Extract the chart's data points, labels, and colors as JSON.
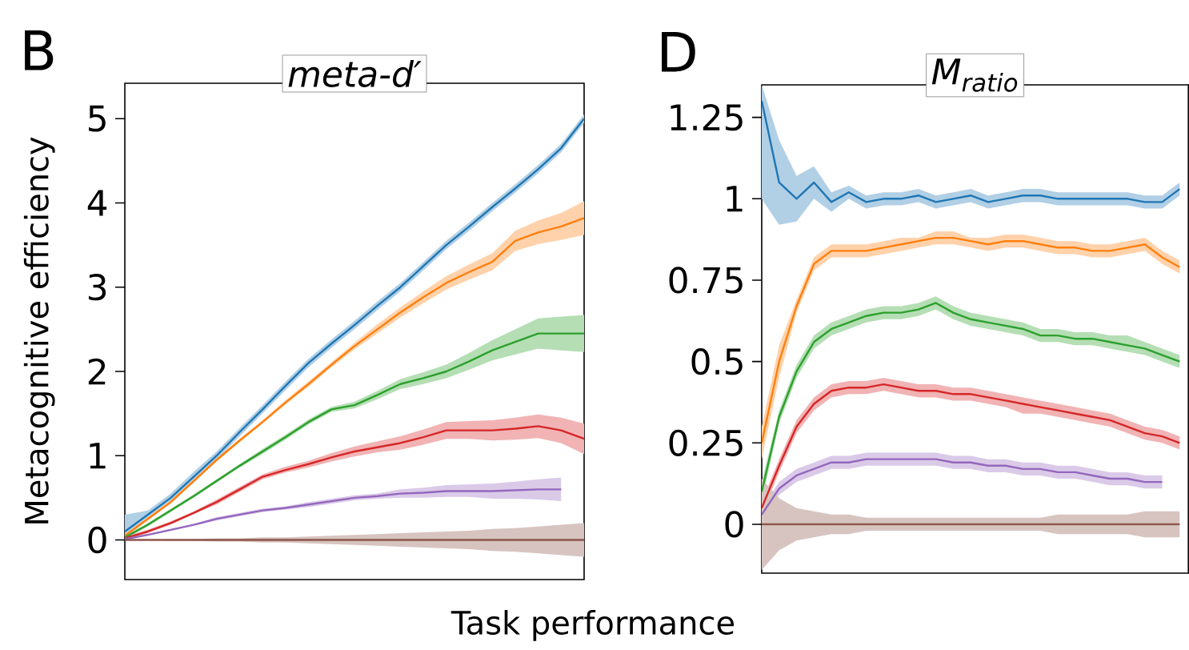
{
  "chart_data": [
    {
      "type": "line",
      "title": "meta-d′",
      "xlabel": "Task performance",
      "ylabel": "Metacognitive efficiency",
      "annotations": [
        "B"
      ],
      "tick_labels": "y",
      "categories": [
        null,
        null,
        null,
        null,
        null,
        null,
        null,
        null,
        null,
        null,
        null,
        null,
        null,
        null,
        null,
        null,
        null,
        null,
        null,
        null,
        null
      ],
      "ylim": [
        -0.47,
        5.42
      ],
      "yticks": [
        0,
        1,
        2,
        3,
        4,
        5
      ],
      "series": [
        {
          "color": "#1f77b4",
          "values": [
            0.1,
            0.3,
            0.5,
            0.75,
            1.0,
            1.28,
            1.55,
            1.83,
            2.1,
            2.33,
            2.55,
            2.78,
            3.0,
            3.25,
            3.5,
            3.72,
            3.95,
            4.17,
            4.4,
            4.65,
            5.0
          ],
          "lower": [
            0.05,
            0.25,
            0.45,
            0.7,
            0.95,
            1.23,
            1.5,
            1.78,
            2.05,
            2.28,
            2.5,
            2.73,
            2.95,
            3.2,
            3.45,
            3.67,
            3.9,
            4.12,
            4.35,
            4.6,
            4.95
          ],
          "upper": [
            0.3,
            0.35,
            0.55,
            0.81,
            1.05,
            1.33,
            1.6,
            1.88,
            2.15,
            2.38,
            2.6,
            2.83,
            3.05,
            3.3,
            3.55,
            3.77,
            4.0,
            4.22,
            4.45,
            4.7,
            5.05
          ]
        },
        {
          "color": "#ff7f0e",
          "values": [
            0.05,
            0.25,
            0.45,
            0.7,
            0.95,
            1.18,
            1.4,
            1.63,
            1.85,
            2.08,
            2.3,
            2.5,
            2.7,
            2.88,
            3.05,
            3.18,
            3.3,
            3.55,
            3.65,
            3.72,
            3.82
          ],
          "lower": [
            0.03,
            0.23,
            0.43,
            0.68,
            0.93,
            1.16,
            1.38,
            1.61,
            1.82,
            2.05,
            2.26,
            2.45,
            2.64,
            2.81,
            2.97,
            3.09,
            3.2,
            3.43,
            3.51,
            3.56,
            3.62
          ],
          "upper": [
            0.07,
            0.27,
            0.47,
            0.72,
            0.97,
            1.2,
            1.42,
            1.66,
            1.88,
            2.11,
            2.34,
            2.56,
            2.76,
            2.95,
            3.13,
            3.27,
            3.4,
            3.67,
            3.79,
            3.88,
            4.02
          ]
        },
        {
          "color": "#2ca02c",
          "values": [
            0.03,
            0.18,
            0.35,
            0.52,
            0.7,
            0.88,
            1.05,
            1.22,
            1.4,
            1.55,
            1.6,
            1.72,
            1.85,
            1.92,
            2.0,
            2.12,
            2.25,
            2.35,
            2.45,
            2.45,
            2.45
          ],
          "lower": [
            0.01,
            0.16,
            0.33,
            0.5,
            0.68,
            0.86,
            1.02,
            1.19,
            1.37,
            1.52,
            1.56,
            1.67,
            1.79,
            1.85,
            1.92,
            2.02,
            2.13,
            2.2,
            2.27,
            2.25,
            2.23
          ],
          "upper": [
            0.05,
            0.2,
            0.37,
            0.54,
            0.72,
            0.9,
            1.08,
            1.25,
            1.43,
            1.58,
            1.64,
            1.77,
            1.91,
            1.99,
            2.08,
            2.22,
            2.37,
            2.5,
            2.63,
            2.65,
            2.67
          ]
        },
        {
          "color": "#d62728",
          "values": [
            0.02,
            0.1,
            0.2,
            0.32,
            0.45,
            0.6,
            0.75,
            0.83,
            0.9,
            0.98,
            1.05,
            1.1,
            1.15,
            1.22,
            1.3,
            1.3,
            1.3,
            1.32,
            1.35,
            1.3,
            1.2
          ],
          "lower": [
            0.0,
            0.08,
            0.18,
            0.31,
            0.42,
            0.57,
            0.72,
            0.8,
            0.86,
            0.93,
            0.99,
            1.04,
            1.07,
            1.13,
            1.2,
            1.2,
            1.18,
            1.19,
            1.21,
            1.15,
            1.02
          ],
          "upper": [
            0.04,
            0.12,
            0.22,
            0.34,
            0.48,
            0.63,
            0.78,
            0.87,
            0.94,
            1.03,
            1.11,
            1.17,
            1.23,
            1.31,
            1.4,
            1.41,
            1.42,
            1.45,
            1.49,
            1.45,
            1.38
          ]
        },
        {
          "color": "#9467bd",
          "values": [
            0.01,
            0.06,
            0.12,
            0.18,
            0.25,
            0.3,
            0.35,
            0.38,
            0.42,
            0.46,
            0.5,
            0.52,
            0.55,
            0.56,
            0.58,
            0.58,
            0.58,
            0.59,
            0.6,
            0.6,
            null
          ],
          "lower": [
            0.0,
            0.05,
            0.11,
            0.17,
            0.23,
            0.28,
            0.33,
            0.36,
            0.39,
            0.43,
            0.47,
            0.49,
            0.5,
            0.5,
            0.51,
            0.51,
            0.49,
            0.49,
            0.48,
            0.46,
            null
          ],
          "upper": [
            0.02,
            0.07,
            0.13,
            0.19,
            0.27,
            0.32,
            0.37,
            0.4,
            0.45,
            0.49,
            0.53,
            0.55,
            0.6,
            0.62,
            0.65,
            0.66,
            0.67,
            0.69,
            0.72,
            0.74,
            null
          ]
        },
        {
          "color": "#8c564b",
          "values": [
            0,
            0,
            0,
            0,
            0,
            0,
            0,
            0,
            0,
            0,
            0,
            0,
            0,
            0,
            0,
            0,
            0,
            0,
            0,
            0,
            0
          ],
          "lower": [
            0,
            0,
            -0.01,
            -0.01,
            -0.02,
            -0.02,
            -0.03,
            -0.03,
            -0.04,
            -0.05,
            -0.06,
            -0.07,
            -0.08,
            -0.09,
            -0.1,
            -0.11,
            -0.13,
            -0.14,
            -0.16,
            -0.18,
            -0.2
          ],
          "upper": [
            0,
            0,
            0.01,
            0.01,
            0.02,
            0.02,
            0.03,
            0.03,
            0.04,
            0.05,
            0.06,
            0.07,
            0.08,
            0.09,
            0.1,
            0.11,
            0.13,
            0.14,
            0.16,
            0.18,
            0.2
          ]
        }
      ]
    },
    {
      "type": "line",
      "title": "*M*$_{ratio}$",
      "annotations": [
        "D"
      ],
      "tick_labels": "y",
      "categories": [
        null,
        null,
        null,
        null,
        null,
        null,
        null,
        null,
        null,
        null,
        null,
        null,
        null,
        null,
        null,
        null,
        null,
        null,
        null,
        null,
        null,
        null,
        null,
        null,
        null
      ],
      "ylim": [
        -0.15,
        1.35
      ],
      "yticks": [
        0,
        0.25,
        0.5,
        0.75,
        1,
        1.25
      ],
      "series": [
        {
          "color": "#1f77b4",
          "values": [
            1.3,
            1.05,
            1.0,
            1.05,
            0.99,
            1.02,
            0.99,
            1.0,
            1.0,
            1.01,
            0.99,
            1.0,
            1.01,
            0.99,
            1.0,
            1.01,
            1.01,
            1.0,
            1.0,
            1.0,
            1.0,
            1.0,
            0.99,
            0.99,
            1.03
          ],
          "lower": [
            1.0,
            0.92,
            0.93,
            1.0,
            0.96,
            1.0,
            0.97,
            0.98,
            0.98,
            0.99,
            0.97,
            0.98,
            0.99,
            0.97,
            0.98,
            0.99,
            0.99,
            0.98,
            0.98,
            0.98,
            0.98,
            0.98,
            0.97,
            0.97,
            1.01
          ],
          "upper": [
            1.35,
            1.18,
            1.07,
            1.1,
            1.02,
            1.04,
            1.01,
            1.02,
            1.02,
            1.03,
            1.01,
            1.02,
            1.03,
            1.01,
            1.02,
            1.03,
            1.03,
            1.02,
            1.02,
            1.02,
            1.02,
            1.02,
            1.01,
            1.01,
            1.05
          ]
        },
        {
          "color": "#ff7f0e",
          "values": [
            0.25,
            0.5,
            0.67,
            0.8,
            0.84,
            0.84,
            0.84,
            0.85,
            0.86,
            0.87,
            0.88,
            0.88,
            0.87,
            0.86,
            0.87,
            0.87,
            0.86,
            0.85,
            0.85,
            0.84,
            0.84,
            0.85,
            0.86,
            0.82,
            0.79
          ],
          "lower": [
            0.2,
            0.45,
            0.65,
            0.78,
            0.82,
            0.82,
            0.82,
            0.83,
            0.84,
            0.85,
            0.86,
            0.86,
            0.85,
            0.84,
            0.85,
            0.85,
            0.84,
            0.83,
            0.83,
            0.82,
            0.82,
            0.83,
            0.84,
            0.8,
            0.77
          ],
          "upper": [
            0.3,
            0.55,
            0.69,
            0.82,
            0.86,
            0.86,
            0.86,
            0.87,
            0.88,
            0.88,
            0.9,
            0.9,
            0.88,
            0.88,
            0.89,
            0.89,
            0.88,
            0.87,
            0.87,
            0.86,
            0.86,
            0.87,
            0.88,
            0.84,
            0.81
          ]
        },
        {
          "color": "#2ca02c",
          "values": [
            0.1,
            0.33,
            0.47,
            0.56,
            0.6,
            0.62,
            0.64,
            0.65,
            0.65,
            0.66,
            0.68,
            0.65,
            0.63,
            0.62,
            0.61,
            0.6,
            0.58,
            0.58,
            0.57,
            0.57,
            0.56,
            0.55,
            0.54,
            0.52,
            0.5
          ],
          "lower": [
            0.07,
            0.31,
            0.45,
            0.54,
            0.58,
            0.6,
            0.62,
            0.63,
            0.63,
            0.64,
            0.66,
            0.63,
            0.61,
            0.6,
            0.59,
            0.58,
            0.56,
            0.56,
            0.55,
            0.55,
            0.54,
            0.53,
            0.52,
            0.5,
            0.48
          ],
          "upper": [
            0.13,
            0.35,
            0.49,
            0.58,
            0.62,
            0.64,
            0.66,
            0.67,
            0.67,
            0.68,
            0.7,
            0.67,
            0.65,
            0.64,
            0.63,
            0.62,
            0.6,
            0.6,
            0.59,
            0.59,
            0.58,
            0.58,
            0.56,
            0.54,
            0.52
          ]
        },
        {
          "color": "#d62728",
          "values": [
            0.05,
            0.18,
            0.3,
            0.37,
            0.41,
            0.42,
            0.42,
            0.43,
            0.42,
            0.41,
            0.41,
            0.4,
            0.4,
            0.39,
            0.38,
            0.37,
            0.36,
            0.35,
            0.34,
            0.33,
            0.32,
            0.3,
            0.28,
            0.27,
            0.25
          ],
          "lower": [
            0.03,
            0.16,
            0.28,
            0.35,
            0.39,
            0.4,
            0.4,
            0.41,
            0.4,
            0.39,
            0.39,
            0.38,
            0.38,
            0.37,
            0.36,
            0.34,
            0.34,
            0.33,
            0.32,
            0.31,
            0.3,
            0.28,
            0.26,
            0.25,
            0.23
          ],
          "upper": [
            0.07,
            0.2,
            0.32,
            0.39,
            0.43,
            0.44,
            0.44,
            0.45,
            0.44,
            0.43,
            0.43,
            0.42,
            0.42,
            0.41,
            0.4,
            0.39,
            0.38,
            0.37,
            0.36,
            0.35,
            0.34,
            0.32,
            0.3,
            0.29,
            0.27
          ]
        },
        {
          "color": "#9467bd",
          "values": [
            0.03,
            0.11,
            0.15,
            0.17,
            0.19,
            0.19,
            0.2,
            0.2,
            0.2,
            0.2,
            0.2,
            0.19,
            0.19,
            0.18,
            0.18,
            0.17,
            0.17,
            0.16,
            0.16,
            0.15,
            0.14,
            0.14,
            0.13,
            0.13,
            null
          ],
          "lower": [
            0.01,
            0.09,
            0.13,
            0.15,
            0.17,
            0.17,
            0.18,
            0.18,
            0.18,
            0.18,
            0.18,
            0.17,
            0.17,
            0.16,
            0.16,
            0.15,
            0.15,
            0.14,
            0.14,
            0.13,
            0.12,
            0.12,
            0.11,
            0.11,
            null
          ],
          "upper": [
            0.05,
            0.13,
            0.17,
            0.19,
            0.21,
            0.21,
            0.22,
            0.22,
            0.22,
            0.22,
            0.22,
            0.21,
            0.21,
            0.2,
            0.2,
            0.19,
            0.19,
            0.18,
            0.18,
            0.17,
            0.16,
            0.16,
            0.15,
            0.15,
            null
          ]
        },
        {
          "color": "#8c564b",
          "values": [
            0,
            0,
            0,
            0,
            0,
            0,
            0,
            0,
            0,
            0,
            0,
            0,
            0,
            0,
            0,
            0,
            0,
            0,
            0,
            0,
            0,
            0,
            0,
            0,
            0
          ],
          "lower": [
            -0.14,
            -0.08,
            -0.05,
            -0.04,
            -0.03,
            -0.03,
            -0.02,
            -0.02,
            -0.02,
            -0.02,
            -0.02,
            -0.02,
            -0.02,
            -0.02,
            -0.02,
            -0.02,
            -0.02,
            -0.03,
            -0.03,
            -0.03,
            -0.03,
            -0.03,
            -0.04,
            -0.04,
            -0.04
          ],
          "upper": [
            0.14,
            0.08,
            0.05,
            0.04,
            0.03,
            0.03,
            0.02,
            0.02,
            0.02,
            0.02,
            0.02,
            0.02,
            0.02,
            0.02,
            0.02,
            0.02,
            0.02,
            0.03,
            0.03,
            0.03,
            0.03,
            0.03,
            0.04,
            0.04,
            0.04
          ]
        }
      ]
    }
  ]
}
